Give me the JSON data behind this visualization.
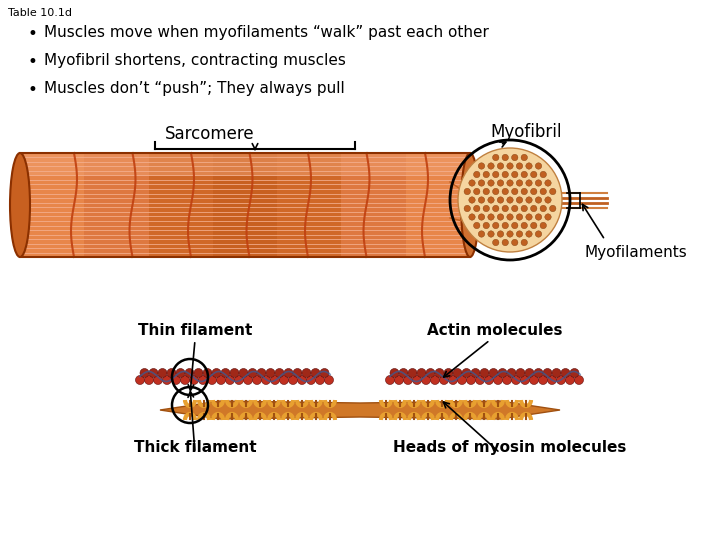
{
  "title": "Table 10.1d",
  "bullet1": "Muscles move when myofilaments “walk” past each other",
  "bullet2": "Myofibril shortens, contracting muscles",
  "bullet3": "Muscles don’t “push”; They always pull",
  "label_sarcomere": "Sarcomere",
  "label_myofibril": "Myofibril",
  "label_myofilaments": "Myofilaments",
  "label_thin": "Thin filament",
  "label_thick": "Thick filament",
  "label_actin": "Actin molecules",
  "label_myosin": "Heads of myosin molecules",
  "bg_color": "#ffffff",
  "text_color": "#000000",
  "title_fontsize": 8,
  "bullet_fontsize": 11,
  "label_fontsize": 10
}
